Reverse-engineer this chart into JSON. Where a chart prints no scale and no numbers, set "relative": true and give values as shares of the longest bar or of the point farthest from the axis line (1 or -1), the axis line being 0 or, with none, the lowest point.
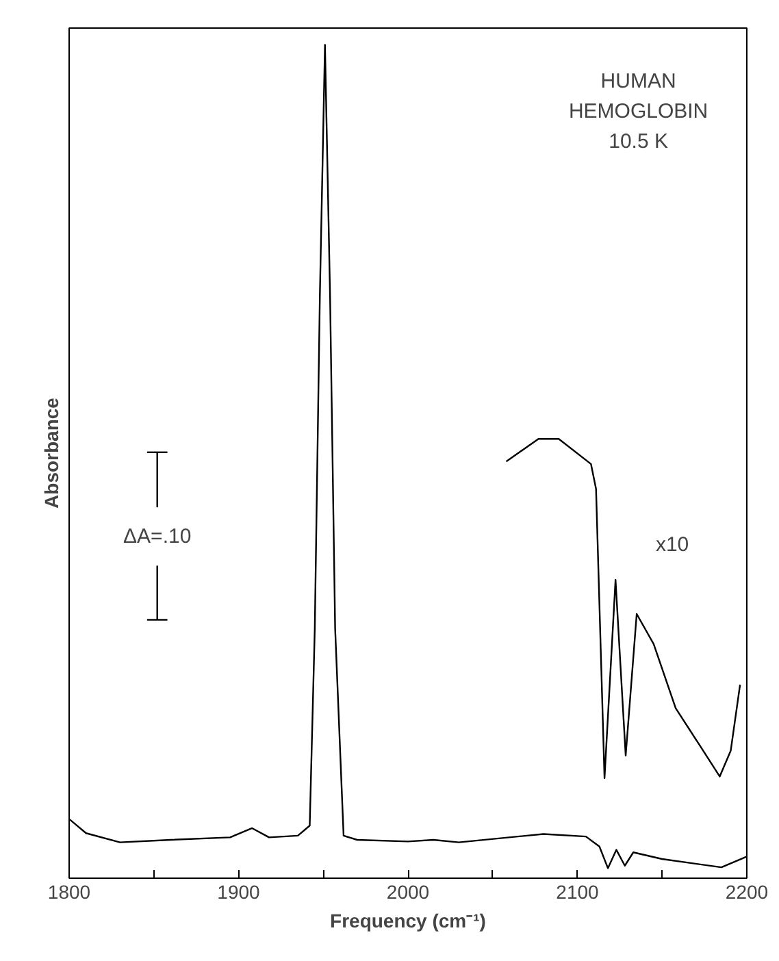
{
  "chart_data": {
    "type": "line",
    "relative": true,
    "xlabel": "Frequency (cm⁻¹)",
    "ylabel": "Absorbance",
    "xlim": [
      1800,
      2200
    ],
    "xticks": [
      1800,
      {
        "value": 1850,
        "label": null
      },
      1900,
      {
        "value": 1950,
        "label": null
      },
      2000,
      {
        "value": 2050,
        "label": null
      },
      2100,
      {
        "value": 2150,
        "label": null
      },
      2200
    ],
    "series": [
      {
        "color": "#000000",
        "x": [
          1800,
          1810,
          1830,
          1860,
          1895,
          1908,
          1918,
          1935,
          1942,
          1945,
          1948,
          1951,
          1954,
          1957,
          1962,
          1970,
          2000,
          2015,
          2030,
          2080,
          2105,
          2113,
          2118,
          2123,
          2128,
          2133,
          2150,
          2185,
          2200
        ],
        "values": [
          0.071,
          0.054,
          0.043,
          0.046,
          0.049,
          0.06,
          0.049,
          0.051,
          0.063,
          0.3,
          0.7,
          1,
          0.7,
          0.3,
          0.051,
          0.046,
          0.044,
          0.046,
          0.043,
          0.053,
          0.05,
          0.038,
          0.012,
          0.034,
          0.015,
          0.031,
          0.023,
          0.013,
          0.026
        ]
      },
      {
        "color": "#000000",
        "x": [
          2058,
          2077,
          2089,
          2108,
          2111,
          2116,
          2122.5,
          2128.5,
          2135,
          2145,
          2158,
          2172,
          2184,
          2190.5,
          2196
        ],
        "values": [
          0.5,
          0.527,
          0.527,
          0.497,
          0.467,
          0.12,
          0.358,
          0.147,
          0.317,
          0.281,
          0.204,
          0.16,
          0.122,
          0.153,
          0.232
        ]
      }
    ],
    "annotations": [
      "HUMAN\nHEMOGLOBIN\n10.5 K",
      "ΔA=.10",
      "x10"
    ],
    "grid": false,
    "tick_labels": "x",
    "marker": "none",
    "line_style": "solid"
  }
}
